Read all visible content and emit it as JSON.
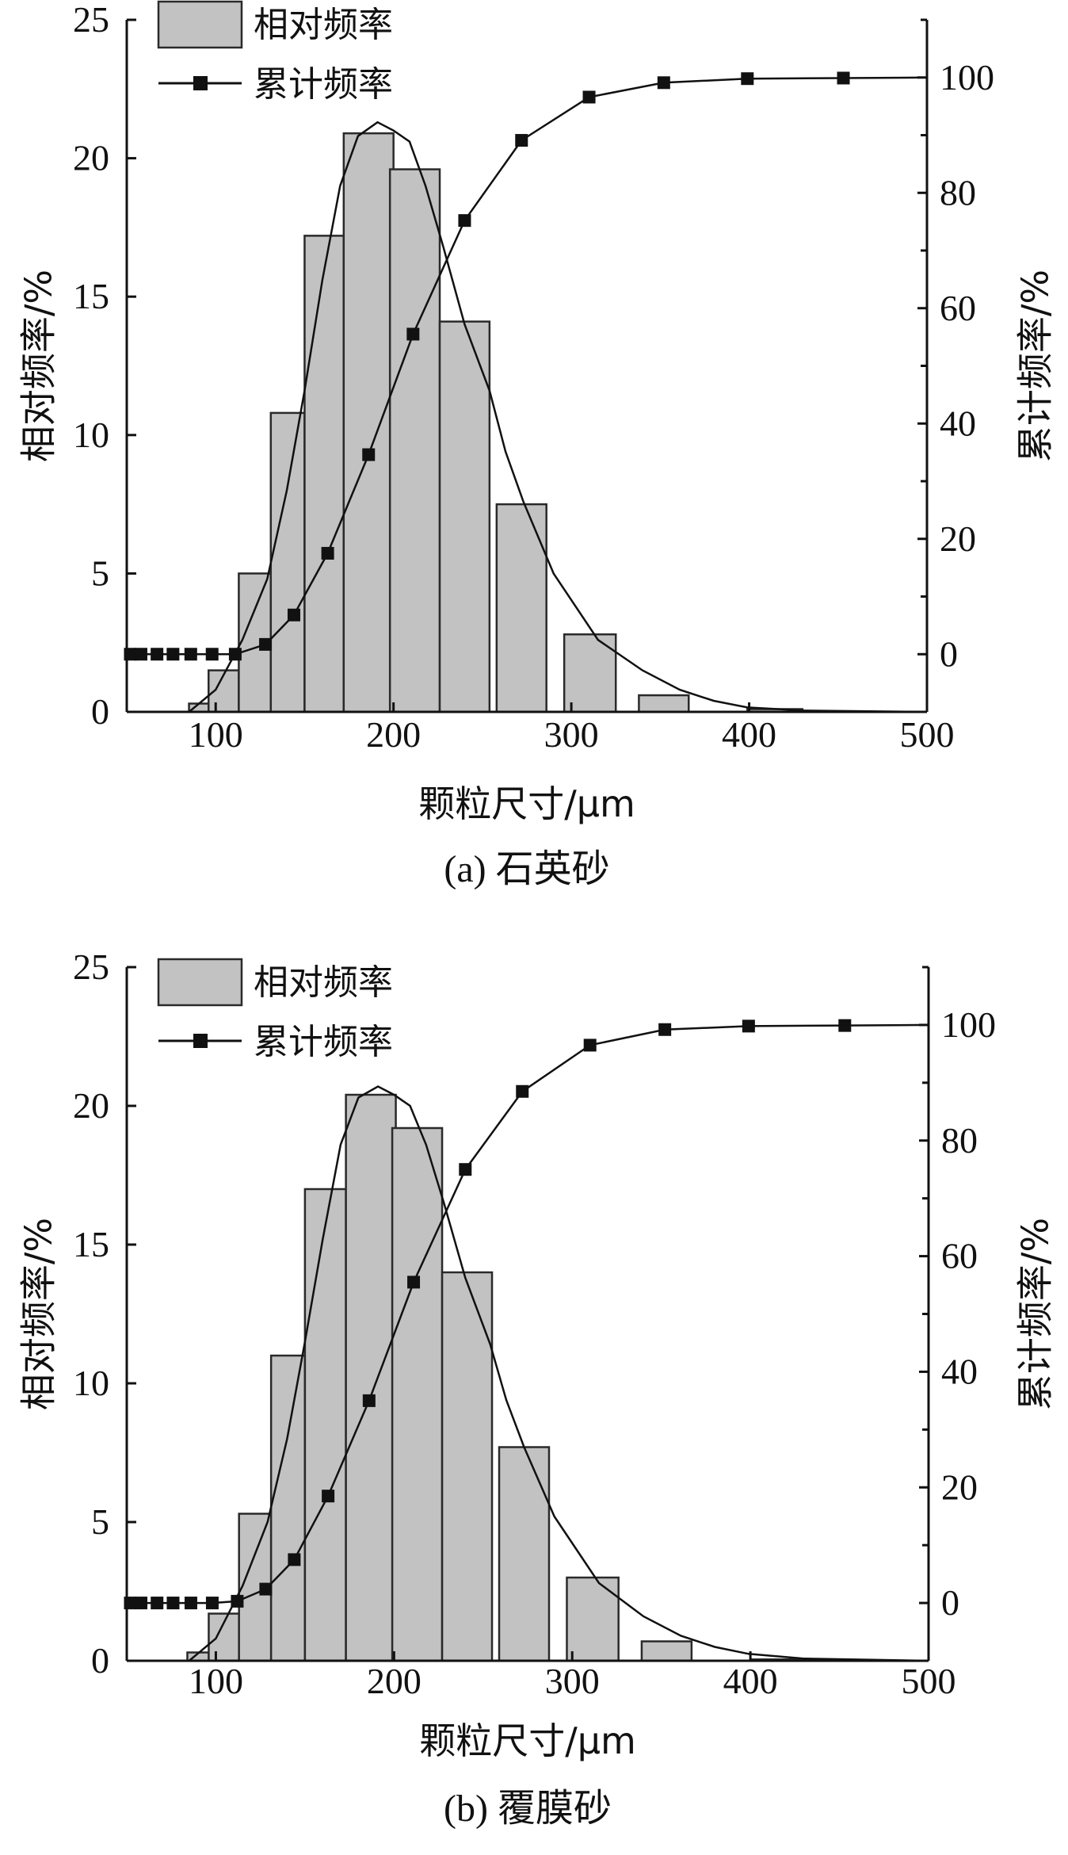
{
  "colors": {
    "bar_fill": "#c2c2c2",
    "bar_stroke": "#2a2a2a",
    "line": "#111111"
  },
  "chart_data": [
    {
      "type": "bar",
      "caption": "(a) 石英砂",
      "xlabel": "颗粒尺寸/μm",
      "ylabel": "相对频率/%",
      "y2label": "累计频率/%",
      "legend": [
        "相对频率",
        "累计频率"
      ],
      "legend_position": "top-left",
      "xlim": [
        50,
        500
      ],
      "ylim": [
        0,
        25
      ],
      "y2lim": [
        -10,
        110
      ],
      "xticks": [
        100,
        200,
        300,
        400,
        500
      ],
      "yticks": [
        0,
        5,
        10,
        15,
        20,
        25
      ],
      "y2ticks": [
        0,
        20,
        40,
        60,
        80,
        100
      ],
      "bars": [
        {
          "x0": 85,
          "x1": 96,
          "value": 0.3
        },
        {
          "x0": 96,
          "x1": 113,
          "value": 1.5
        },
        {
          "x0": 113,
          "x1": 131,
          "value": 5.0
        },
        {
          "x0": 131,
          "x1": 150,
          "value": 10.8
        },
        {
          "x0": 150,
          "x1": 172,
          "value": 17.2
        },
        {
          "x0": 172,
          "x1": 200,
          "value": 20.9
        },
        {
          "x0": 198,
          "x1": 226,
          "value": 19.6
        },
        {
          "x0": 226,
          "x1": 254,
          "value": 14.1
        },
        {
          "x0": 258,
          "x1": 286,
          "value": 7.5
        },
        {
          "x0": 296,
          "x1": 325,
          "value": 2.8
        },
        {
          "x0": 338,
          "x1": 366,
          "value": 0.6
        },
        {
          "x0": 399,
          "x1": 430,
          "value": 0.1
        }
      ],
      "fit_curve": [
        [
          85,
          0
        ],
        [
          100,
          0.8
        ],
        [
          115,
          2.6
        ],
        [
          129,
          4.8
        ],
        [
          140,
          8.0
        ],
        [
          150,
          11.6
        ],
        [
          160,
          15.6
        ],
        [
          170,
          19.0
        ],
        [
          180,
          20.8
        ],
        [
          191,
          21.3
        ],
        [
          200,
          21.0
        ],
        [
          209,
          20.6
        ],
        [
          218,
          19.0
        ],
        [
          228,
          16.8
        ],
        [
          240,
          14.0
        ],
        [
          254,
          11.6
        ],
        [
          263,
          9.4
        ],
        [
          273,
          7.6
        ],
        [
          290,
          5.0
        ],
        [
          315,
          2.6
        ],
        [
          340,
          1.5
        ],
        [
          361,
          0.8
        ],
        [
          380,
          0.4
        ],
        [
          399,
          0.16
        ],
        [
          430,
          0.05
        ],
        [
          500,
          0
        ]
      ],
      "cumulative": [
        [
          52,
          0
        ],
        [
          58,
          0
        ],
        [
          67,
          0
        ],
        [
          76,
          0
        ],
        [
          86,
          0
        ],
        [
          98,
          0
        ],
        [
          111,
          0
        ],
        [
          128,
          1.7
        ],
        [
          144,
          6.8
        ],
        [
          163,
          17.5
        ],
        [
          186,
          34.6
        ],
        [
          211,
          55.5
        ],
        [
          240,
          75.2
        ],
        [
          272,
          89.1
        ],
        [
          310,
          96.6
        ],
        [
          352,
          99.1
        ],
        [
          399,
          99.8
        ],
        [
          453,
          99.9
        ],
        [
          500,
          100
        ]
      ]
    },
    {
      "type": "bar",
      "caption": "(b) 覆膜砂",
      "xlabel": "颗粒尺寸/μm",
      "ylabel": "相对频率/%",
      "y2label": "累计频率/%",
      "legend": [
        "相对频率",
        "累计频率"
      ],
      "legend_position": "top-left",
      "xlim": [
        50,
        500
      ],
      "ylim": [
        0,
        25
      ],
      "y2lim": [
        -10,
        110
      ],
      "xticks": [
        100,
        200,
        300,
        400,
        500
      ],
      "yticks": [
        0,
        5,
        10,
        15,
        20,
        25
      ],
      "y2ticks": [
        0,
        20,
        40,
        60,
        80,
        100
      ],
      "bars": [
        {
          "x0": 84,
          "x1": 96,
          "value": 0.3
        },
        {
          "x0": 96,
          "x1": 113,
          "value": 1.7
        },
        {
          "x0": 113,
          "x1": 131,
          "value": 5.3
        },
        {
          "x0": 131,
          "x1": 150,
          "value": 11.0
        },
        {
          "x0": 150,
          "x1": 173,
          "value": 17.0
        },
        {
          "x0": 173,
          "x1": 201,
          "value": 20.4
        },
        {
          "x0": 199,
          "x1": 227,
          "value": 19.2
        },
        {
          "x0": 227,
          "x1": 255,
          "value": 14.0
        },
        {
          "x0": 259,
          "x1": 287,
          "value": 7.7
        },
        {
          "x0": 297,
          "x1": 326,
          "value": 3.0
        },
        {
          "x0": 339,
          "x1": 367,
          "value": 0.7
        },
        {
          "x0": 400,
          "x1": 431,
          "value": 0.05
        }
      ],
      "fit_curve": [
        [
          85,
          0
        ],
        [
          100,
          0.8
        ],
        [
          115,
          2.7
        ],
        [
          129,
          5.0
        ],
        [
          140,
          8.0
        ],
        [
          150,
          11.5
        ],
        [
          160,
          15.2
        ],
        [
          170,
          18.6
        ],
        [
          180,
          20.3
        ],
        [
          191,
          20.7
        ],
        [
          200,
          20.4
        ],
        [
          209,
          20.0
        ],
        [
          218,
          18.6
        ],
        [
          228,
          16.5
        ],
        [
          240,
          13.8
        ],
        [
          254,
          11.4
        ],
        [
          263,
          9.4
        ],
        [
          273,
          7.7
        ],
        [
          290,
          5.2
        ],
        [
          315,
          2.8
        ],
        [
          340,
          1.6
        ],
        [
          361,
          0.9
        ],
        [
          380,
          0.5
        ],
        [
          399,
          0.25
        ],
        [
          430,
          0.08
        ],
        [
          500,
          0
        ]
      ],
      "cumulative": [
        [
          52,
          0
        ],
        [
          58,
          0
        ],
        [
          67,
          0
        ],
        [
          76,
          0
        ],
        [
          86,
          0
        ],
        [
          98,
          0
        ],
        [
          112,
          0.3
        ],
        [
          128,
          2.4
        ],
        [
          144,
          7.5
        ],
        [
          163,
          18.5
        ],
        [
          186,
          35.0
        ],
        [
          211,
          55.5
        ],
        [
          240,
          75.0
        ],
        [
          272,
          88.5
        ],
        [
          310,
          96.5
        ],
        [
          352,
          99.2
        ],
        [
          399,
          99.8
        ],
        [
          453,
          99.9
        ],
        [
          500,
          100
        ]
      ]
    }
  ]
}
